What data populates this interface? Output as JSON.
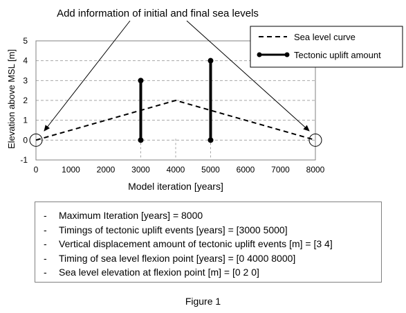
{
  "annotation": "Add information of initial and final sea levels",
  "chart_data": {
    "type": "line",
    "xlabel": "Model iteration [years]",
    "ylabel": "Elevation above MSL [m]",
    "xlim": [
      0,
      8000
    ],
    "ylim": [
      -1,
      5
    ],
    "x_ticks": [
      "0",
      "1000",
      "2000",
      "3000",
      "4000",
      "5000",
      "6000",
      "7000",
      "8000"
    ],
    "y_ticks": [
      "-1",
      "0",
      "1",
      "2",
      "3",
      "4",
      "5"
    ],
    "grid": "horizontal dashed",
    "legend_position": "top-right",
    "series": [
      {
        "name": "Sea level curve",
        "style": "dashed",
        "color": "#000000",
        "points": [
          [
            0,
            0
          ],
          [
            4000,
            2
          ],
          [
            8000,
            0
          ]
        ]
      },
      {
        "name": "Tectonic uplift amount",
        "style": "solid-with-dot-ends",
        "color": "#000000",
        "segments": [
          {
            "x": 3000,
            "from": 0,
            "to": 3
          },
          {
            "x": 5000,
            "from": 0,
            "to": 4
          }
        ]
      }
    ],
    "highlighted_points": [
      [
        0,
        0
      ],
      [
        8000,
        0
      ]
    ]
  },
  "info": [
    "Maximum Iteration [years] = 8000",
    "Timings of tectonic uplift events [years] = [3000 5000]",
    "Vertical displacement amount of tectonic uplift events [m] = [3 4]",
    "Timing of sea level flexion point [years] = [0 4000 8000]",
    "Sea level elevation at flexion point [m] = [0 2 0]"
  ],
  "info_dash": "-",
  "caption": "Figure 1"
}
